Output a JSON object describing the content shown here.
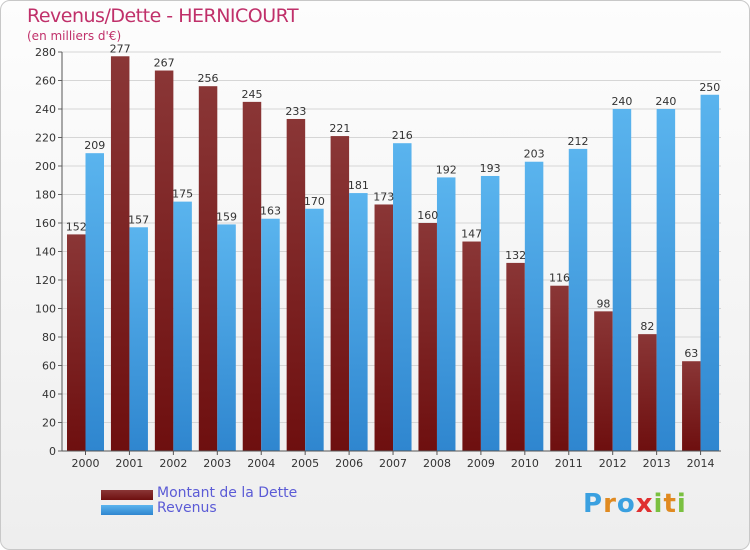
{
  "title": "Revenus/Dette - HERNICOURT",
  "subtitle": "(en milliers d'€)",
  "logo": {
    "letters": [
      "P",
      "r",
      "o",
      "x",
      "i",
      "t",
      "i"
    ],
    "colors": [
      "#3aa0e0",
      "#e08a20",
      "#3aa0e0",
      "#e03030",
      "#7ac040",
      "#e08a20",
      "#7ac040"
    ]
  },
  "colors": {
    "dette_top": "#8a3636",
    "dette_bottom": "#6e0f0f",
    "revenus_top": "#5ab4ee",
    "revenus_bottom": "#2f86cf"
  },
  "legend": {
    "dette": "Montant de la Dette",
    "revenus": "Revenus"
  },
  "chart_data": {
    "type": "bar",
    "categories": [
      "2000",
      "2001",
      "2002",
      "2003",
      "2004",
      "2005",
      "2006",
      "2007",
      "2008",
      "2009",
      "2010",
      "2011",
      "2012",
      "2013",
      "2014"
    ],
    "series": [
      {
        "name": "Montant de la Dette",
        "values": [
          152,
          277,
          267,
          256,
          245,
          233,
          221,
          173,
          160,
          147,
          132,
          116,
          98,
          82,
          63
        ]
      },
      {
        "name": "Revenus",
        "values": [
          209,
          157,
          175,
          159,
          163,
          170,
          181,
          216,
          192,
          193,
          203,
          212,
          240,
          240,
          250
        ]
      }
    ],
    "ylim": [
      0,
      280
    ],
    "yticks": [
      0,
      20,
      40,
      60,
      80,
      100,
      120,
      140,
      160,
      180,
      200,
      220,
      240,
      260,
      280
    ],
    "grid": true,
    "legend_position": "bottom-left"
  }
}
